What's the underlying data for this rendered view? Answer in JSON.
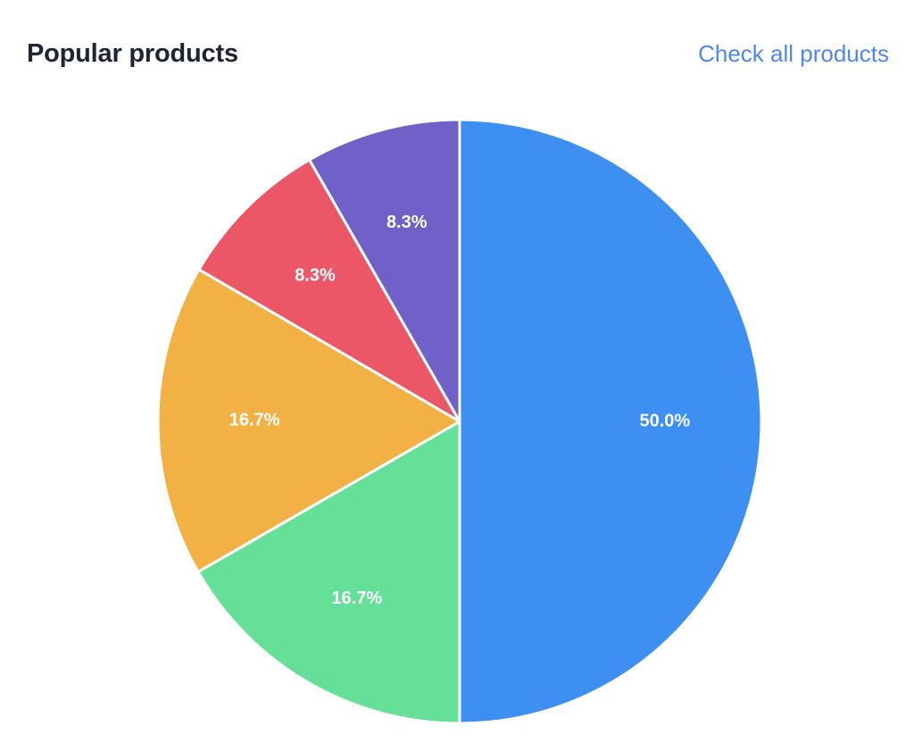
{
  "header": {
    "title": "Popular products",
    "link_label": "Check all products"
  },
  "colors": {
    "title": "#1f2633",
    "link": "#4f86f7",
    "slice_stroke": "#ffffff",
    "label_text": "#ffffff"
  },
  "chart_data": {
    "type": "pie",
    "title": "Popular products",
    "values": [
      50.0,
      16.7,
      16.7,
      8.3,
      8.3
    ],
    "labels": [
      "50.0%",
      "16.7%",
      "16.7%",
      "8.3%",
      "8.3%"
    ],
    "colors": [
      "#3d8ff2",
      "#66df99",
      "#f2b144",
      "#eb5766",
      "#7061c8"
    ],
    "start": "12 o'clock",
    "direction": "clockwise",
    "legend": false
  }
}
